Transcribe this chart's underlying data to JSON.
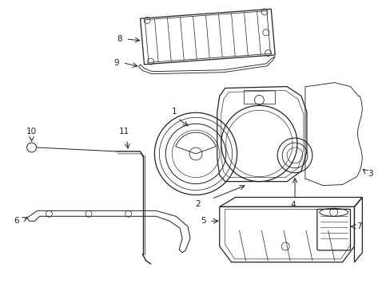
{
  "bg_color": "#ffffff",
  "line_color": "#222222",
  "label_color": "#000000",
  "fig_width": 4.89,
  "fig_height": 3.6,
  "dpi": 100
}
